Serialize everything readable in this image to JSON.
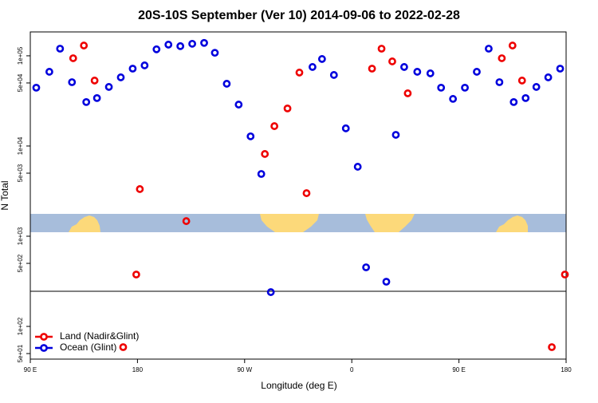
{
  "chart_data": {
    "type": "scatter",
    "title": "20S-10S September (Ver 10)   2014-09-06 to 2022-02-28",
    "x_label": "Longitude (deg E)",
    "y_label": "N Total",
    "xlim": [
      90,
      540
    ],
    "xticks": [
      {
        "value": 90,
        "label": "90 E"
      },
      180,
      {
        "value": 270,
        "label": "90 W"
      },
      {
        "value": 360,
        "label": "0"
      },
      {
        "value": 450,
        "label": "90 E"
      },
      {
        "value": 540,
        "label": "180"
      }
    ],
    "ylim": [
      43.4,
      184000
    ],
    "ylog": true,
    "yticks": [
      {
        "value": 50,
        "label": "5e+01"
      },
      {
        "value": 100,
        "label": "1e+02"
      },
      {
        "value": 500,
        "label": "5e+02"
      },
      {
        "value": 1000,
        "label": "1e+03"
      },
      {
        "value": 5000,
        "label": "5e+03"
      },
      {
        "value": 10000,
        "label": "1e+04"
      },
      {
        "value": 50000,
        "label": "5e+04"
      },
      {
        "value": 100000,
        "label": "1e+05"
      }
    ],
    "legend": "bottom left",
    "series": [
      {
        "name": "Land (Nadir&Glint)",
        "color": "#ee0000",
        "x": [
          126,
          135,
          144,
          168,
          179,
          182,
          221,
          287,
          295,
          306,
          316,
          322,
          377,
          385,
          394,
          407,
          486,
          495,
          503,
          528,
          539
        ],
        "values": [
          94000,
          130000,
          53200,
          58.9,
          376,
          3330,
          1470,
          8160,
          16600,
          26100,
          65200,
          3000,
          72100,
          120000,
          86700,
          38400,
          94000,
          130000,
          53200,
          58.9,
          376
        ]
      },
      {
        "name": "Ocean (Glint)",
        "color": "#0000dd",
        "x": [
          95,
          106,
          115,
          125,
          137,
          146,
          156,
          166,
          176,
          186,
          196,
          206,
          216,
          226,
          236,
          245,
          255,
          265,
          275,
          284,
          292,
          327,
          335,
          345,
          355,
          365,
          372,
          389,
          397,
          404,
          415,
          426,
          435,
          445,
          455,
          465,
          475,
          484,
          496,
          506,
          515,
          525,
          535
        ],
        "values": [
          44300,
          66500,
          120000,
          51000,
          30700,
          34000,
          45200,
          57700,
          72100,
          78300,
          118000,
          133000,
          128000,
          136000,
          139000,
          108000,
          49000,
          28800,
          12800,
          4900,
          240,
          75200,
          92200,
          61300,
          15700,
          5890,
          452,
          313,
          13300,
          75200,
          66500,
          63900,
          44300,
          33300,
          44300,
          66500,
          120000,
          51000,
          30700,
          34000,
          45200,
          57700,
          72100
        ]
      }
    ]
  }
}
